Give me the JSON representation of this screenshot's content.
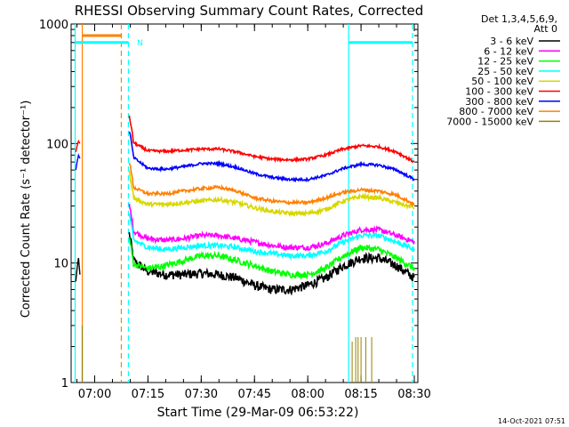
{
  "chart_data": {
    "type": "line",
    "title": "RHESSI Observing Summary Count Rates, Corrected",
    "xlabel": "Start Time (29-Mar-09 06:53:22)",
    "ylabel": "Corrected Count Rate (s⁻¹ detector⁻¹)",
    "y_scale": "log",
    "ylim": [
      1,
      1000
    ],
    "xlim": [
      "06:53:22",
      "08:31:00"
    ],
    "x_ticks": [
      "07:00",
      "07:15",
      "07:30",
      "07:45",
      "08:00",
      "08:15",
      "08:30"
    ],
    "y_ticks": [
      "1",
      "10",
      "100",
      "1000"
    ],
    "legend_header": [
      "Det 1,3,4,5,6,9,",
      "Att 0"
    ],
    "legend_position": "top-right",
    "annotations": {
      "night_marker": "N",
      "footer_date": "14-Oct-2021 07:51"
    },
    "markers": [
      {
        "label": "eclipse bar",
        "x_start": "06:54:30",
        "x_end": "07:09:30",
        "y": 700,
        "color": "#00ffff"
      },
      {
        "label": "eclipse bar",
        "x_start": "08:11:30",
        "x_end": "08:29:30",
        "y": 700,
        "color": "#00ffff"
      },
      {
        "label": "orange bar",
        "x_start": "06:56:30",
        "x_end": "07:07:30",
        "y": 800,
        "color": "#ff8000"
      }
    ],
    "vertical_lines": [
      {
        "x": "06:54:30",
        "style": "solid",
        "color": "#00ffff"
      },
      {
        "x": "06:56:30",
        "style": "solid",
        "color": "#ff8000"
      },
      {
        "x": "07:07:30",
        "style": "dashed",
        "color": "#ff8000"
      },
      {
        "x": "07:09:30",
        "style": "dashed",
        "color": "#00ffff"
      },
      {
        "x": "08:11:30",
        "style": "solid",
        "color": "#00ffff"
      },
      {
        "x": "08:29:30",
        "style": "dashed",
        "color": "#00ffff"
      }
    ],
    "x_times": [
      "07:10",
      "07:15",
      "07:20",
      "07:25",
      "07:30",
      "07:35",
      "07:40",
      "07:45",
      "07:50",
      "07:55",
      "08:00",
      "08:05",
      "08:10",
      "08:15",
      "08:20",
      "08:25",
      "08:30"
    ],
    "series": [
      {
        "name": "3 - 6 keV",
        "color": "#000000",
        "noise": 0.09,
        "values": [
          11,
          8.5,
          8,
          8,
          8.2,
          8,
          7.5,
          6.5,
          6,
          6,
          6.5,
          7.5,
          9.5,
          11,
          11,
          9.5,
          7.5
        ],
        "pre": [
          7,
          9,
          11,
          8
        ]
      },
      {
        "name": "6 - 12 keV",
        "color": "#ff00ff",
        "noise": 0.05,
        "values": [
          19,
          16,
          15.5,
          16,
          17,
          17,
          16,
          15,
          14,
          13.5,
          13.5,
          14.5,
          17,
          19,
          19,
          17,
          15
        ],
        "pre": [
          null,
          null,
          null,
          null
        ]
      },
      {
        "name": "12 - 25 keV",
        "color": "#00ff00",
        "noise": 0.06,
        "values": [
          10,
          9,
          9.5,
          10.5,
          11.5,
          11.5,
          10.5,
          9.5,
          8.5,
          8,
          8,
          9,
          11.5,
          13.5,
          13,
          11,
          9
        ],
        "pre": [
          null,
          null,
          null,
          null
        ]
      },
      {
        "name": "25 - 50 keV",
        "color": "#00ffff",
        "noise": 0.05,
        "values": [
          16,
          13.5,
          13,
          13.5,
          14,
          14,
          13.5,
          12.5,
          12,
          11.5,
          11.5,
          12.5,
          15,
          17,
          17,
          15,
          13
        ],
        "pre": [
          null,
          null,
          null,
          null
        ]
      },
      {
        "name": "50 - 100 keV",
        "color": "#d7d700",
        "noise": 0.04,
        "values": [
          36,
          31,
          31,
          32,
          33,
          34,
          32,
          29,
          27,
          26,
          26,
          28,
          33,
          36,
          35,
          32,
          29
        ],
        "pre": [
          null,
          null,
          null,
          null
        ]
      },
      {
        "name": "100 - 300 keV",
        "color": "#ff0000",
        "noise": 0.025,
        "values": [
          105,
          87,
          86,
          88,
          90,
          90,
          85,
          78,
          74,
          73,
          74,
          80,
          90,
          96,
          94,
          85,
          70
        ],
        "pre": [
          85,
          95,
          105,
          100
        ]
      },
      {
        "name": "300 - 800 keV",
        "color": "#0000ff",
        "noise": 0.025,
        "values": [
          80,
          62,
          61,
          64,
          68,
          68,
          63,
          56,
          52,
          50,
          50,
          54,
          62,
          67,
          66,
          60,
          50
        ],
        "pre": [
          60,
          70,
          80,
          75
        ]
      },
      {
        "name": "800 - 7000 keV",
        "color": "#ff8000",
        "noise": 0.03,
        "values": [
          44,
          38,
          38,
          40,
          42,
          43,
          40,
          35,
          33,
          32,
          32,
          35,
          39,
          41,
          40,
          37,
          31
        ],
        "pre": [
          null,
          null,
          null,
          null
        ]
      },
      {
        "name": "7000 - 15000 keV",
        "color": "#9a8000",
        "noise": 0,
        "values": [],
        "pre": [
          null,
          null,
          null,
          null
        ]
      }
    ]
  }
}
